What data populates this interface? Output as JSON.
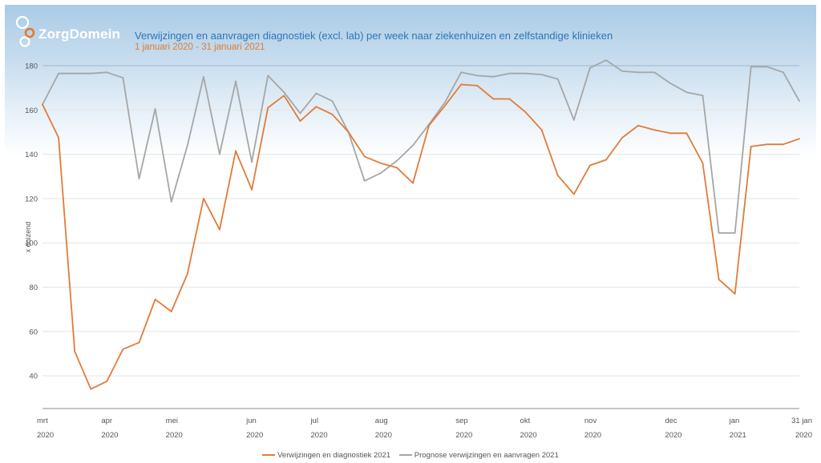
{
  "header": {
    "brand": "ZorgDomein",
    "title": "Verwijzingen en aanvragen diagnostiek (excl. lab) per week naar ziekenhuizen en zelfstandige klinieken",
    "subtitle": "1 januari 2020 - 31 januari 2021"
  },
  "colors": {
    "series_primary": "#e07b3a",
    "series_secondary": "#a6a6a6",
    "title": "#2e74b5",
    "subtitle": "#e07b2e",
    "gridline": "#e3e3e3",
    "gridline_top": "#9fb4c8",
    "axis": "#8c8c8c"
  },
  "chart_data": {
    "type": "line",
    "title": "Verwijzingen en aanvragen diagnostiek (excl. lab) per week naar ziekenhuizen en zelfstandige klinieken",
    "subtitle": "1 januari 2020 - 31 januari 2021",
    "xlabel": "",
    "ylabel": "x duizend",
    "ylim": [
      24,
      182
    ],
    "yticks": [
      40,
      60,
      80,
      100,
      120,
      140,
      160,
      180
    ],
    "grid": true,
    "legend_position": "bottom",
    "x_ticks": [
      {
        "index": 0,
        "month": "mrt",
        "year": "2020"
      },
      {
        "index": 4,
        "month": "apr",
        "year": "2020"
      },
      {
        "index": 8,
        "month": "mei",
        "year": "2020"
      },
      {
        "index": 13,
        "month": "jun",
        "year": "2020"
      },
      {
        "index": 17,
        "month": "jul",
        "year": "2020"
      },
      {
        "index": 21,
        "month": "aug",
        "year": "2020"
      },
      {
        "index": 26,
        "month": "sep",
        "year": "2020"
      },
      {
        "index": 30,
        "month": "okt",
        "year": "2020"
      },
      {
        "index": 34,
        "month": "nov",
        "year": "2020"
      },
      {
        "index": 39,
        "month": "dec",
        "year": "2020"
      },
      {
        "index": 43,
        "month": "jan",
        "year": "2021"
      },
      {
        "index": 47,
        "month": "31 jan",
        "year": "2020"
      }
    ],
    "n_points": 48,
    "series": [
      {
        "name": "Verwijzingen en diagnostiek 2021",
        "color": "#e07b3a",
        "values": [
          162.5,
          147.5,
          51,
          34,
          37.5,
          52,
          55,
          74.5,
          69,
          86,
          120,
          106,
          141.5,
          124,
          161,
          166.5,
          155,
          161.5,
          158,
          150,
          139,
          136,
          134,
          127,
          153,
          162,
          171.5,
          171,
          165,
          165,
          159,
          151,
          130.5,
          122,
          135,
          137.5,
          147.5,
          153,
          151,
          149.5,
          149.5,
          136,
          83.5,
          77,
          143.5,
          144.5,
          144.5,
          147
        ]
      },
      {
        "name": "Prognose verwijzingen en aanvragen 2021",
        "color": "#a6a6a6",
        "values": [
          162.5,
          176.5,
          176.5,
          176.5,
          177,
          174.5,
          129,
          160.5,
          118.5,
          144,
          175,
          140,
          173,
          136.5,
          175.5,
          168,
          158.5,
          167.5,
          164,
          150,
          128,
          131.5,
          137,
          144,
          153.5,
          163.5,
          177,
          175.5,
          175,
          176.5,
          176.5,
          176,
          174,
          155.5,
          179,
          182.5,
          177.5,
          177,
          177,
          172,
          168,
          166.5,
          104.5,
          104.5,
          179.5,
          179.5,
          177,
          164
        ]
      }
    ]
  }
}
